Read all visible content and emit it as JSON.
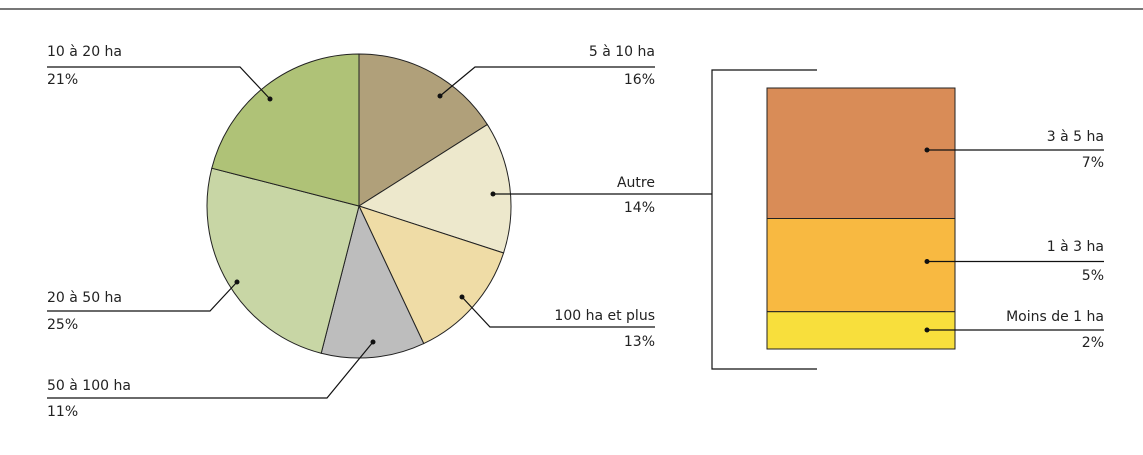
{
  "chart_data": {
    "type": "pie",
    "categories": [
      "5 à 10 ha",
      "Autre",
      "100 ha et plus",
      "50 à 100 ha",
      "20 à 50 ha",
      "10 à 20 ha"
    ],
    "values": [
      16,
      14,
      13,
      11,
      25,
      21
    ],
    "value_labels": [
      "16%",
      "14%",
      "13%",
      "11%",
      "25%",
      "21%"
    ],
    "colors": [
      "#b0a07a",
      "#ede8cc",
      "#efdca6",
      "#bdbdbd",
      "#c8d6a5",
      "#afc277"
    ],
    "breakdown": {
      "categories": [
        "3 à 5 ha",
        "1 à 3 ha",
        "Moins de 1 ha"
      ],
      "values": [
        7,
        5,
        2
      ],
      "value_labels": [
        "7%",
        "5%",
        "2%"
      ],
      "colors": [
        "#d98c57",
        "#f8b941",
        "#f8df3c"
      ]
    }
  }
}
